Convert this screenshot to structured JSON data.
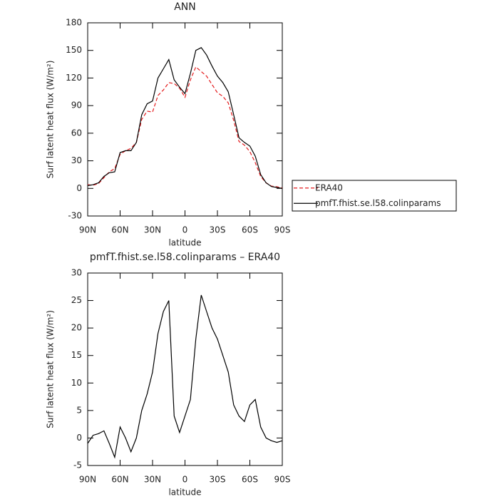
{
  "chart_data": [
    {
      "type": "line",
      "title": "ANN",
      "ylabel": "Surf latent heat flux (W/m²)",
      "xlabel": "latitude",
      "x": [
        90,
        85,
        80,
        75,
        70,
        65,
        60,
        55,
        50,
        45,
        40,
        35,
        30,
        25,
        20,
        15,
        10,
        5,
        0,
        -5,
        -10,
        -15,
        -20,
        -25,
        -30,
        -35,
        -40,
        -45,
        -50,
        -55,
        -60,
        -65,
        -70,
        -75,
        -80,
        -85,
        -90
      ],
      "xlim": [
        90,
        -90
      ],
      "xticks": [
        {
          "value": 90,
          "label": "90N"
        },
        {
          "value": 60,
          "label": "60N"
        },
        {
          "value": 30,
          "label": "30N"
        },
        0,
        {
          "value": -30,
          "label": "30S"
        },
        {
          "value": -60,
          "label": "60S"
        },
        {
          "value": -90,
          "label": "90S"
        }
      ],
      "ylim": [
        -30,
        180
      ],
      "yticks": [
        -30,
        0,
        30,
        60,
        90,
        120,
        150,
        180
      ],
      "legend": "right",
      "series": [
        {
          "name": "ERA40",
          "color": "#e41a1c",
          "dash": true,
          "values": [
            4,
            3.5,
            5.2,
            11.7,
            18,
            21.5,
            37,
            41,
            43.5,
            50,
            75,
            84,
            83,
            101,
            107,
            115,
            114,
            109,
            99,
            118,
            132,
            127,
            122,
            113,
            104,
            100,
            93,
            74,
            51,
            47,
            40,
            28,
            13,
            6,
            2.5,
            1.8,
            0.5
          ]
        },
        {
          "name": "pmfT.fhist.se.l58.colinparams",
          "color": "#000000",
          "dash": false,
          "values": [
            3,
            4,
            6,
            13,
            17,
            18,
            39,
            41,
            41,
            50,
            80,
            92,
            95,
            120,
            130,
            140,
            118,
            110,
            103,
            125,
            150,
            153,
            145,
            133,
            122,
            115,
            105,
            80,
            55,
            50,
            46,
            35,
            15,
            6,
            2,
            1,
            0
          ]
        }
      ]
    },
    {
      "type": "line",
      "title": "pmfT.fhist.se.l58.colinparams – ERA40",
      "ylabel": "Surf latent heat flux (W/m²)",
      "xlabel": "latitude",
      "x": [
        90,
        85,
        80,
        75,
        70,
        65,
        60,
        55,
        50,
        45,
        40,
        35,
        30,
        25,
        20,
        15,
        10,
        5,
        0,
        -5,
        -10,
        -15,
        -20,
        -25,
        -30,
        -35,
        -40,
        -45,
        -50,
        -55,
        -60,
        -65,
        -70,
        -75,
        -80,
        -85,
        -90
      ],
      "xlim": [
        90,
        -90
      ],
      "xticks": [
        {
          "value": 90,
          "label": "90N"
        },
        {
          "value": 60,
          "label": "60N"
        },
        {
          "value": 30,
          "label": "30N"
        },
        0,
        {
          "value": -30,
          "label": "30S"
        },
        {
          "value": -60,
          "label": "60S"
        },
        {
          "value": -90,
          "label": "90S"
        }
      ],
      "ylim": [
        -5,
        30
      ],
      "yticks": [
        -5,
        0,
        5,
        10,
        15,
        20,
        25,
        30
      ],
      "series": [
        {
          "color": "#000000",
          "dash": false,
          "values": [
            -1,
            0.5,
            0.8,
            1.3,
            -1,
            -3.5,
            2,
            0,
            -2.5,
            0,
            5,
            8,
            12,
            19,
            23,
            25,
            4,
            1,
            4,
            7,
            18,
            26,
            23,
            20,
            18,
            15,
            12,
            6,
            4,
            3,
            6,
            7,
            2,
            0,
            -0.5,
            -0.8,
            -0.5
          ]
        }
      ]
    }
  ]
}
